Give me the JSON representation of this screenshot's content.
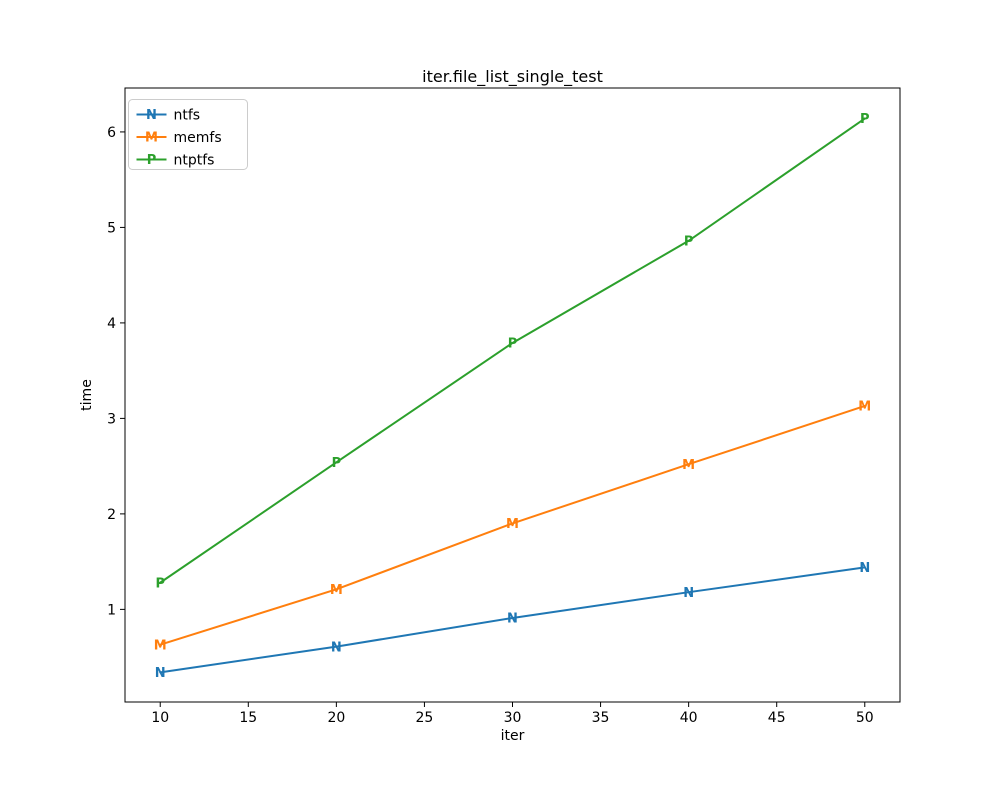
{
  "chart_data": {
    "type": "line",
    "title": "iter.file_list_single_test",
    "xlabel": "iter",
    "ylabel": "time",
    "x": [
      10,
      20,
      30,
      40,
      50
    ],
    "series": [
      {
        "name": "ntfs",
        "marker": "N",
        "color": "#1f77b4",
        "values": [
          0.34,
          0.61,
          0.91,
          1.18,
          1.44
        ]
      },
      {
        "name": "memfs",
        "marker": "M",
        "color": "#ff7f0e",
        "values": [
          0.63,
          1.21,
          1.9,
          2.52,
          3.13
        ]
      },
      {
        "name": "ntptfs",
        "marker": "P",
        "color": "#2ca02c",
        "values": [
          1.28,
          2.54,
          3.79,
          4.86,
          6.14
        ]
      }
    ],
    "xticks": [
      10,
      15,
      20,
      25,
      30,
      35,
      40,
      45,
      50
    ],
    "yticks": [
      1,
      2,
      3,
      4,
      5,
      6
    ],
    "xlim": [
      8,
      52
    ],
    "ylim": [
      0.03,
      6.46
    ],
    "grid": false,
    "legend_position": "upper left",
    "axis_color": "#000000",
    "legend_border_color": "#cccccc",
    "background_color": "#ffffff"
  }
}
